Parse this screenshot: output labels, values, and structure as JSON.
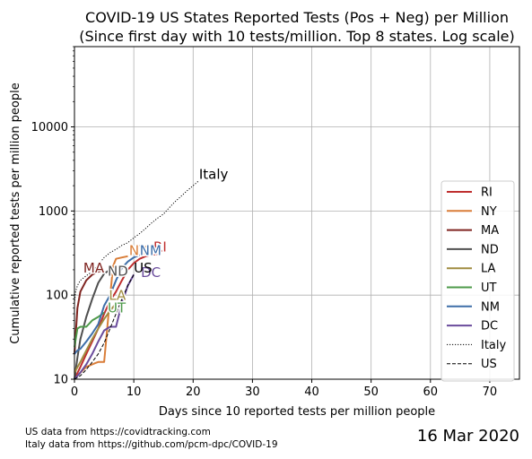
{
  "chart_data": {
    "type": "line",
    "title": "COVID-19 US States Reported Tests (Pos + Neg) per Million",
    "subtitle": "(Since first day with 10 tests/million. Top 8 states. Log scale)",
    "xlabel": "Days since 10 reported tests per million people",
    "ylabel": "Cumulative reported tests per million people",
    "xlim": [
      0,
      75
    ],
    "ylim": [
      10,
      90000
    ],
    "yscale": "log",
    "grid": true,
    "x_ticks": [
      "0",
      "10",
      "20",
      "30",
      "40",
      "50",
      "60",
      "70"
    ],
    "y_ticks": [
      {
        "value": 10,
        "label": "10"
      },
      {
        "value": 100,
        "label": "100"
      },
      {
        "value": 1000,
        "label": "1000"
      },
      {
        "value": 10000,
        "label": "10000"
      }
    ],
    "legend_position": "right",
    "series": [
      {
        "name": "RI",
        "color": "#bf2f2f",
        "dash": "solid",
        "x": [
          0,
          1,
          2,
          3,
          4,
          5,
          6,
          7,
          8,
          9,
          10,
          11,
          12,
          13,
          14
        ],
        "y": [
          10,
          14,
          20,
          28,
          40,
          60,
          85,
          110,
          150,
          200,
          240,
          270,
          290,
          300,
          310
        ],
        "label": "RI",
        "label_at": [
          13.3,
          330
        ]
      },
      {
        "name": "NY",
        "color": "#d97d38",
        "dash": "solid",
        "x": [
          0,
          1,
          2,
          3,
          3.5,
          4,
          5,
          6,
          6.5,
          7,
          8,
          9
        ],
        "y": [
          10,
          12,
          14,
          15,
          15.5,
          16,
          16,
          95,
          220,
          270,
          280,
          290
        ],
        "label": "NY",
        "label_at": [
          9.2,
          300
        ]
      },
      {
        "name": "MA",
        "color": "#7f2420",
        "dash": "solid",
        "x": [
          0,
          0.5,
          1,
          2,
          3,
          4,
          5
        ],
        "y": [
          20,
          70,
          110,
          150,
          175,
          190,
          200
        ],
        "label": "MA",
        "label_at": [
          1.5,
          185
        ]
      },
      {
        "name": "ND",
        "color": "#4f4f4f",
        "dash": "solid",
        "x": [
          0,
          0.5,
          1,
          2,
          3,
          4,
          5,
          6
        ],
        "y": [
          10,
          18,
          30,
          55,
          90,
          140,
          180,
          200
        ],
        "label": "ND",
        "label_at": [
          5.6,
          170
        ]
      },
      {
        "name": "LA",
        "color": "#a08c40",
        "dash": "solid",
        "x": [
          0,
          1,
          2,
          3,
          4,
          5,
          6,
          7
        ],
        "y": [
          12,
          16,
          22,
          30,
          40,
          52,
          65,
          80
        ],
        "label": "LA",
        "label_at": [
          5.8,
          88
        ]
      },
      {
        "name": "UT",
        "color": "#4e9a4a",
        "dash": "solid",
        "x": [
          0,
          0.5,
          1,
          2,
          3,
          4,
          5
        ],
        "y": [
          24,
          40,
          42,
          42,
          50,
          55,
          62
        ],
        "label": "UT",
        "label_at": [
          5.6,
          62
        ]
      },
      {
        "name": "NM",
        "color": "#3e6ea8",
        "dash": "solid",
        "x": [
          0,
          0.5,
          1,
          2,
          3,
          4,
          5,
          6,
          7,
          8,
          9,
          10,
          11
        ],
        "y": [
          20,
          22,
          23,
          28,
          35,
          45,
          75,
          100,
          150,
          210,
          250,
          280,
          300
        ],
        "label": "NM",
        "label_at": [
          11,
          300
        ]
      },
      {
        "name": "DC",
        "color": "#6a4c9c",
        "dash": "solid",
        "x": [
          0,
          1,
          2,
          3,
          4,
          5,
          6,
          7,
          8,
          9,
          10
        ],
        "y": [
          10,
          12,
          15,
          20,
          28,
          38,
          42,
          42,
          80,
          130,
          175
        ],
        "label": "DC",
        "label_at": [
          11.2,
          165
        ]
      },
      {
        "name": "Italy",
        "color": "#000000",
        "dash": "dotted",
        "x": [
          0,
          0.2,
          0.5,
          1,
          2,
          3,
          4,
          5,
          6,
          7,
          8,
          9,
          10,
          11,
          12,
          13,
          14,
          15,
          16,
          17,
          18,
          19,
          20,
          21
        ],
        "y": [
          80,
          110,
          130,
          150,
          170,
          190,
          230,
          280,
          320,
          350,
          390,
          420,
          480,
          540,
          620,
          720,
          820,
          920,
          1100,
          1300,
          1500,
          1750,
          2000,
          2300
        ],
        "label": "Italy",
        "label_at": [
          21,
          2400
        ]
      },
      {
        "name": "US",
        "color": "#000000",
        "dash": "dashed",
        "x": [
          0,
          1,
          2,
          3,
          4,
          5,
          6,
          7,
          8,
          9,
          10
        ],
        "y": [
          10,
          11,
          13,
          16,
          20,
          27,
          40,
          60,
          90,
          130,
          175
        ],
        "label": "US",
        "label_at": [
          10,
          185
        ]
      }
    ]
  },
  "footer": {
    "source_us": "US data from https://covidtracking.com",
    "source_italy": "Italy data from https://github.com/pcm-dpc/COVID-19",
    "date": "16 Mar 2020"
  }
}
